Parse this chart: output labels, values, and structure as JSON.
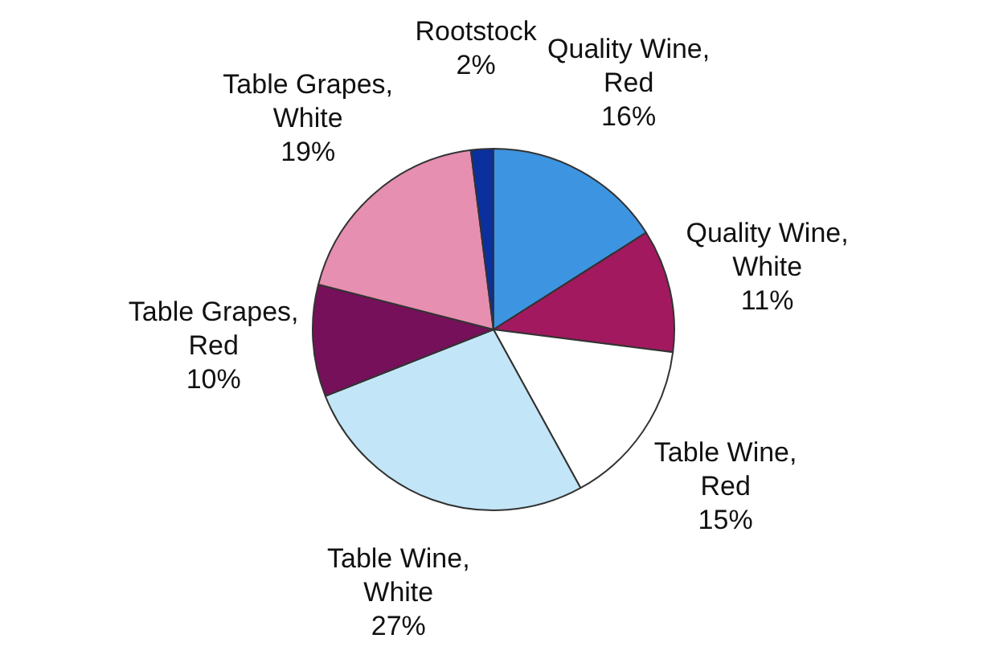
{
  "chart_data": {
    "type": "pie",
    "categories": [
      "Quality Wine, Red",
      "Quality Wine, White",
      "Table Wine, Red",
      "Table Wine, White",
      "Table Grapes, Red",
      "Table Grapes, White",
      "Rootstock"
    ],
    "values": [
      16,
      11,
      15,
      27,
      10,
      19,
      2
    ],
    "value_labels": [
      "16%",
      "11%",
      "15%",
      "27%",
      "10%",
      "19%",
      "2%"
    ],
    "colors": [
      "#3d94e0",
      "#a3195f",
      "#ffffff",
      "#c2e6f7",
      "#76105a",
      "#e68fb0",
      "#0b2f9c"
    ],
    "legend": false
  }
}
